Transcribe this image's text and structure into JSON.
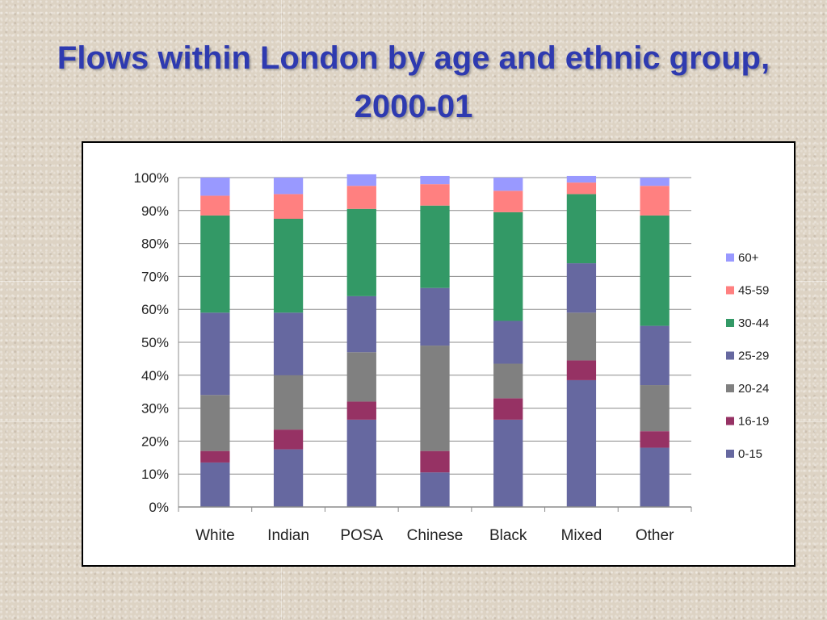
{
  "title": "Flows within London by age and ethnic group, 2000-01",
  "chart_data": {
    "type": "bar",
    "stacked": true,
    "percent": true,
    "categories": [
      "White",
      "Indian",
      "POSA",
      "Chinese",
      "Black",
      "Mixed",
      "Other"
    ],
    "series": [
      {
        "name": "0-15",
        "color": "#6668a0",
        "values": [
          13.5,
          17.5,
          26.5,
          10.5,
          26.5,
          38.5,
          18
        ]
      },
      {
        "name": "16-19",
        "color": "#963264",
        "values": [
          3.5,
          6,
          5.5,
          6.5,
          6.5,
          6,
          5
        ]
      },
      {
        "name": "20-24",
        "color": "#808080",
        "values": [
          17,
          16.5,
          15,
          32,
          10.5,
          14.5,
          14
        ]
      },
      {
        "name": "25-29",
        "color": "#6668a0",
        "values": [
          25,
          19,
          17,
          17.5,
          13,
          15,
          18
        ]
      },
      {
        "name": "30-44",
        "color": "#339966",
        "values": [
          29.5,
          28.5,
          26.5,
          25,
          33,
          21,
          33.5
        ]
      },
      {
        "name": "45-59",
        "color": "#ff8080",
        "values": [
          6,
          7.5,
          7,
          6.5,
          6.5,
          3.5,
          9
        ]
      },
      {
        "name": "60+",
        "color": "#9999ff",
        "values": [
          5.5,
          5,
          3.5,
          2.5,
          4,
          2,
          2.5
        ]
      }
    ],
    "ylim": [
      0,
      100
    ],
    "yticks": [
      "0%",
      "10%",
      "20%",
      "30%",
      "40%",
      "50%",
      "60%",
      "70%",
      "80%",
      "90%",
      "100%"
    ],
    "grid": true,
    "legend_position": "right"
  }
}
